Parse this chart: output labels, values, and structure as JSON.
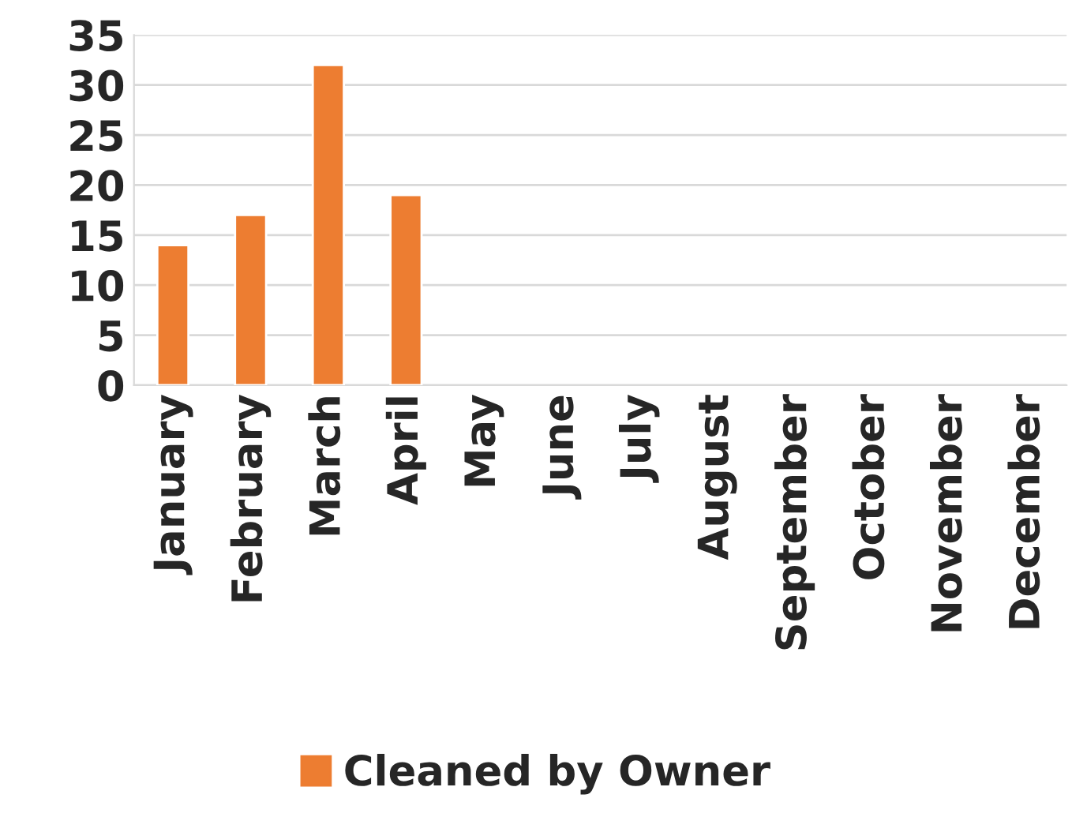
{
  "chart_data": {
    "type": "bar",
    "categories": [
      "January",
      "February",
      "March",
      "April",
      "May",
      "June",
      "July",
      "August",
      "September",
      "October",
      "November",
      "December"
    ],
    "series": [
      {
        "name": "Cleaned by Owner",
        "color": "#ed7d31",
        "values": [
          14,
          17,
          32,
          19,
          null,
          null,
          null,
          null,
          null,
          null,
          null,
          null
        ]
      }
    ],
    "ylim": [
      0,
      35
    ],
    "yticks": [
      0,
      5,
      10,
      15,
      20,
      25,
      30,
      35
    ],
    "grid": "y",
    "legend": "bottom"
  }
}
